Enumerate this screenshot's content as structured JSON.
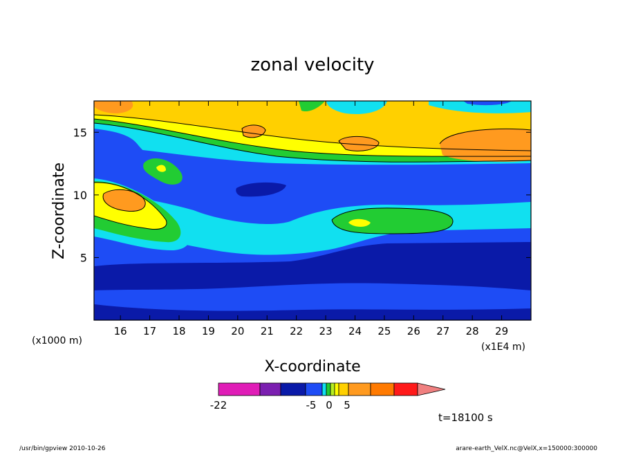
{
  "chart_data": {
    "type": "heatmap",
    "title": "zonal velocity",
    "xlabel": "X-coordinate",
    "ylabel": "Z-coordinate",
    "x_units_note": "(x1E4 m)",
    "y_units_note": "(x1000 m)",
    "xlim": [
      15.1,
      30
    ],
    "ylim": [
      0,
      17.5
    ],
    "x_ticks": [
      16,
      17,
      18,
      19,
      20,
      21,
      22,
      23,
      24,
      25,
      26,
      27,
      28,
      29
    ],
    "y_ticks": [
      5,
      10,
      15
    ],
    "grid": false,
    "colorbar": {
      "colors": [
        "#e01db7",
        "#7b1fb0",
        "#0a1aa8",
        "#1e4cf5",
        "#11e0f0",
        "#22cc33",
        "#b7ee22",
        "#ffff00",
        "#ffd000",
        "#ff9a1f",
        "#ff7a00",
        "#ff1a1a",
        "#f08080"
      ],
      "tick_labels": [
        "-22",
        "-5",
        "0",
        "5"
      ]
    },
    "annotation": "t=18100 s",
    "footer_left": "/usr/bin/gpview   2010-10-26",
    "footer_right": "arare-earth_VelX.nc@VelX,x=150000:300000"
  }
}
